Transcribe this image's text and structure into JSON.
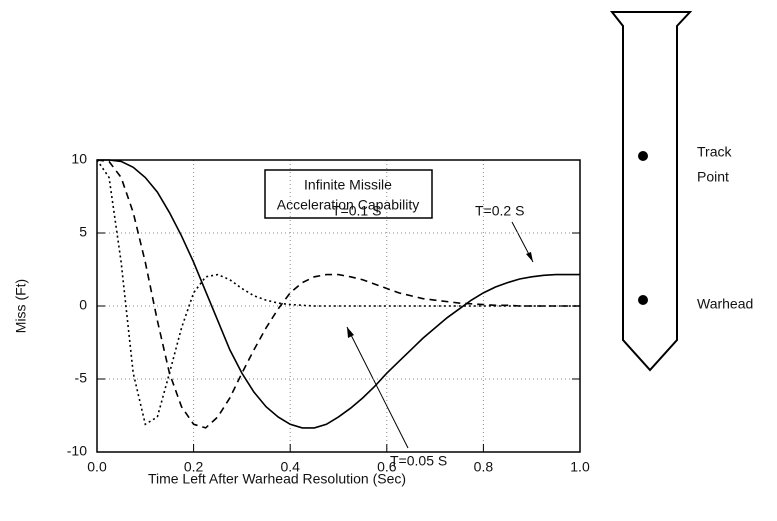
{
  "chart_data": {
    "type": "line",
    "x_label": "Time Left After Warhead Resolution (Sec)",
    "y_label": "Miss (Ft)",
    "annotation_box": [
      "Infinite Missile",
      "Acceleration Capability"
    ],
    "x": [
      0,
      0.025,
      0.05,
      0.075,
      0.1,
      0.125,
      0.15,
      0.175,
      0.2,
      0.225,
      0.25,
      0.275,
      0.3,
      0.325,
      0.35,
      0.375,
      0.4,
      0.425,
      0.45,
      0.475,
      0.5,
      0.525,
      0.55,
      0.575,
      0.6,
      0.625,
      0.65,
      0.675,
      0.7,
      0.725,
      0.75,
      0.775,
      0.8,
      0.825,
      0.85,
      0.875,
      0.9,
      0.925,
      0.95,
      0.975,
      1.0
    ],
    "series": [
      {
        "name": "T=0.05 S",
        "color": "#000000",
        "line_style": "dotted",
        "values": [
          10,
          8.8,
          3.0,
          -4.6,
          -8.1,
          -7.6,
          -4.6,
          -1.5,
          0.9,
          2.0,
          2.15,
          1.8,
          1.2,
          0.7,
          0.4,
          0.2,
          0.1,
          0.05,
          0,
          0,
          0,
          0,
          0,
          0,
          0,
          0,
          0,
          0,
          0,
          0,
          0,
          0,
          0,
          0,
          0,
          0,
          0,
          0,
          0,
          0,
          0
        ]
      },
      {
        "name": "T=0.1 S",
        "color": "#000000",
        "line_style": "dashed",
        "values": [
          10,
          9.9,
          8.8,
          6.4,
          3.0,
          -1.0,
          -4.6,
          -6.9,
          -8.1,
          -8.35,
          -7.6,
          -6.3,
          -4.6,
          -3.0,
          -1.5,
          -0.2,
          0.9,
          1.6,
          2.0,
          2.15,
          2.15,
          2.0,
          1.8,
          1.5,
          1.2,
          0.9,
          0.7,
          0.5,
          0.4,
          0.3,
          0.2,
          0.15,
          0.1,
          0.05,
          0.05,
          0,
          0,
          0,
          0,
          0,
          0
        ]
      },
      {
        "name": "T=0.2 S",
        "color": "#000000",
        "line_style": "solid",
        "values": [
          10,
          10,
          9.9,
          9.5,
          8.8,
          7.8,
          6.4,
          4.8,
          3.0,
          1.0,
          -1.0,
          -3.0,
          -4.6,
          -5.9,
          -6.9,
          -7.6,
          -8.1,
          -8.35,
          -8.35,
          -8.1,
          -7.6,
          -7.0,
          -6.3,
          -5.5,
          -4.6,
          -3.8,
          -3.0,
          -2.2,
          -1.5,
          -0.8,
          -0.2,
          0.4,
          0.9,
          1.3,
          1.6,
          1.85,
          2.0,
          2.1,
          2.15,
          2.15,
          2.15
        ]
      }
    ],
    "xlim": [
      0,
      1.0
    ],
    "xticks": [
      {
        "value": 0,
        "label": "0.0"
      },
      0.2,
      0.4,
      0.6,
      0.8,
      {
        "value": 1.0,
        "label": "1.0"
      }
    ],
    "ylim": [
      -10,
      10
    ],
    "yticks": [
      -10,
      -5,
      0,
      5,
      10
    ],
    "grid": true
  },
  "diagram": {
    "labels": [
      "Track",
      "Point",
      "Warhead"
    ]
  }
}
